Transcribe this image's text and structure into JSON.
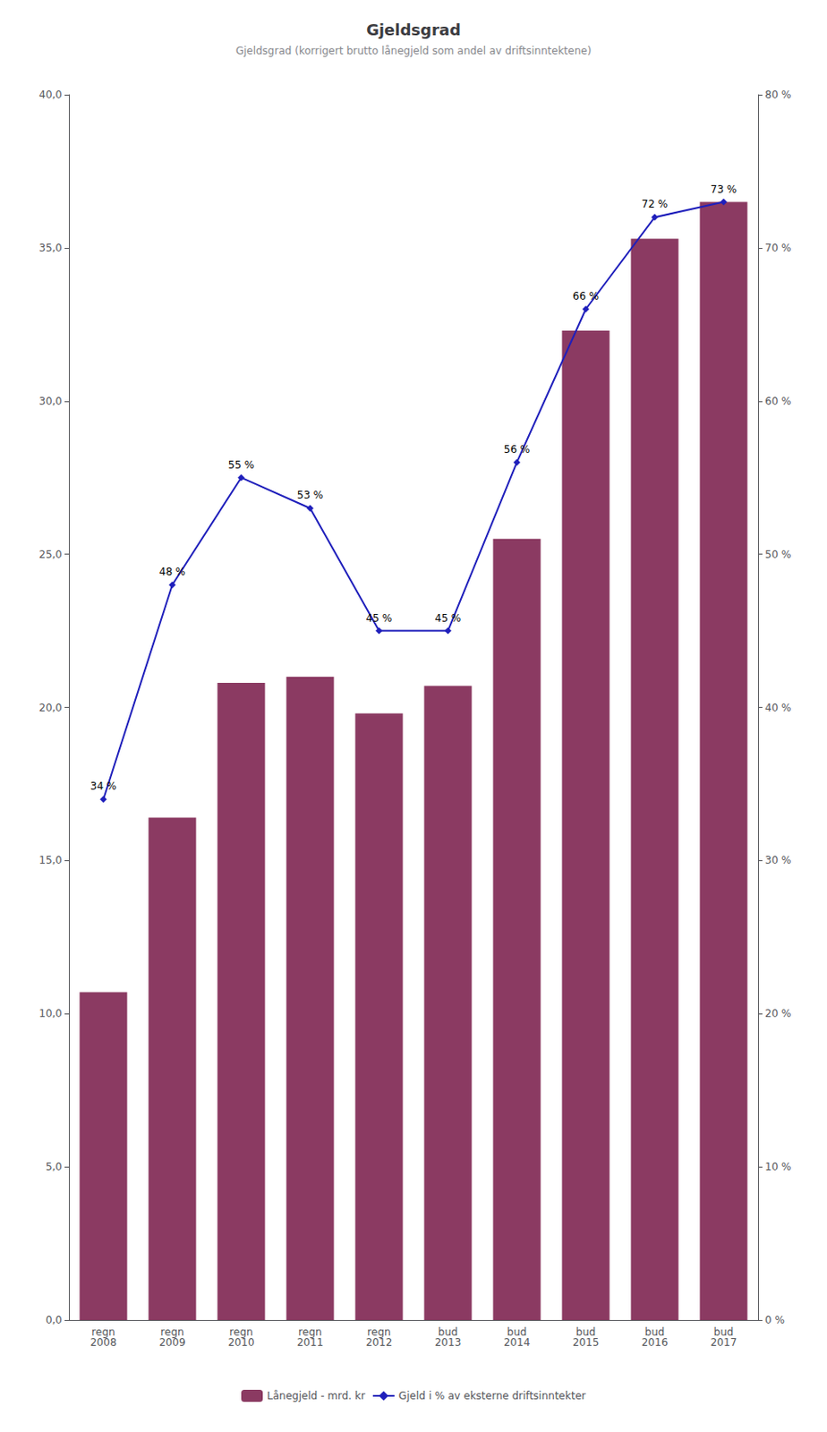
{
  "chart_data": {
    "type": "bar",
    "title": "Gjeldsgrad",
    "subtitle": "Gjeldsgrad (korrigert brutto lånegjeld som andel av driftsinntektene)",
    "categories": [
      "regn\n2008",
      "regn\n2009",
      "regn\n2010",
      "regn\n2011",
      "regn\n2012",
      "bud\n2013",
      "bud\n2014",
      "bud\n2015",
      "bud\n2016",
      "bud\n2017"
    ],
    "series": [
      {
        "name": "Lånegjeld - mrd. kr",
        "type": "bar",
        "color": "#8B3A62",
        "values": [
          10.7,
          16.4,
          20.8,
          21.0,
          19.8,
          20.7,
          25.5,
          32.3,
          35.3,
          36.5
        ]
      },
      {
        "name": "Gjeld i % av eksterne driftsinntekter",
        "type": "line",
        "color": "#1F1FBB",
        "marker": "diamond",
        "axis": "y2",
        "data_labels": true,
        "values": [
          0.34,
          0.48,
          0.55,
          0.53,
          0.45,
          0.45,
          0.56,
          0.66,
          0.72,
          0.73
        ],
        "value_labels": [
          "34 %",
          "48 %",
          "55 %",
          "53 %",
          "45 %",
          "45 %",
          "56 %",
          "66 %",
          "72 %",
          "73 %"
        ]
      }
    ],
    "ylim": [
      0,
      40
    ],
    "yticks": [
      {
        "value": 0,
        "label": "0,0"
      },
      {
        "value": 5,
        "label": "5,0"
      },
      {
        "value": 10,
        "label": "10,0"
      },
      {
        "value": 15,
        "label": "15,0"
      },
      {
        "value": 20,
        "label": "20,0"
      },
      {
        "value": 25,
        "label": "25,0"
      },
      {
        "value": 30,
        "label": "30,0"
      },
      {
        "value": 35,
        "label": "35,0"
      },
      {
        "value": 40,
        "label": "40,0"
      }
    ],
    "y2lim": [
      0,
      0.8
    ],
    "y2ticks": [
      {
        "value": 0,
        "label": "0 %"
      },
      {
        "value": 0.1,
        "label": "10 %"
      },
      {
        "value": 0.2,
        "label": "20 %"
      },
      {
        "value": 0.3,
        "label": "30 %"
      },
      {
        "value": 0.4,
        "label": "40 %"
      },
      {
        "value": 0.5,
        "label": "50 %"
      },
      {
        "value": 0.6,
        "label": "60 %"
      },
      {
        "value": 0.7,
        "label": "70 %"
      },
      {
        "value": 0.8,
        "label": "80 %"
      }
    ],
    "legend": "bottom",
    "grid": false
  }
}
